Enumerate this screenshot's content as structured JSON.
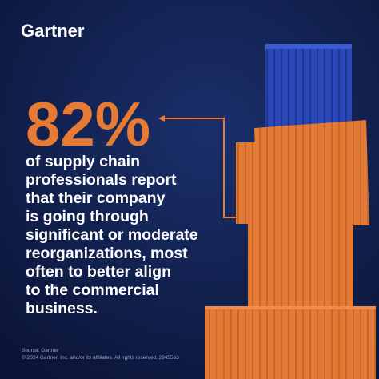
{
  "brand": "Gartner",
  "stat": "82%",
  "body_lines": [
    "of supply chain",
    "professionals report",
    "that their company",
    "is going through",
    "significant or moderate",
    "reorganizations, most",
    "often to better align",
    "to the commercial",
    "business."
  ],
  "source": [
    "Source: Gartner",
    "© 2024 Gartner, Inc. and/or its affiliates. All rights reserved. 2945563"
  ]
}
